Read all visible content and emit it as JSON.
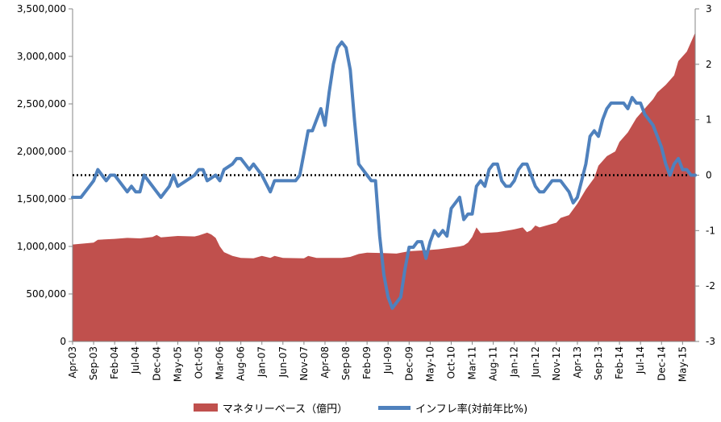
{
  "chart_data": {
    "type": "area",
    "title": "",
    "xlabel": "",
    "ylabel": "",
    "y_left": {
      "ylim": [
        0,
        3500000
      ],
      "ticks": [
        0,
        500000,
        1000000,
        1500000,
        2000000,
        2500000,
        3000000,
        3500000
      ],
      "tick_labels": [
        "0",
        "500,000",
        "1,000,000",
        "1,500,000",
        "2,000,000",
        "2,500,000",
        "3,000,000",
        "3,500,000"
      ]
    },
    "y_right": {
      "ylim": [
        -3,
        3
      ],
      "ticks": [
        -3,
        -2,
        -1,
        0,
        1,
        2,
        3
      ],
      "tick_labels": [
        "-3",
        "-2",
        "-1",
        "0",
        "1",
        "2",
        "3"
      ]
    },
    "x_range": [
      "Apr-03",
      "Aug-15"
    ],
    "x_tick_labels": [
      "Apr-03",
      "Sep-03",
      "Feb-04",
      "Jul-04",
      "Dec-04",
      "May-05",
      "Oct-05",
      "Mar-06",
      "Aug-06",
      "Jan-07",
      "Jun-07",
      "Nov-07",
      "Apr-08",
      "Sep-08",
      "Feb-09",
      "Jul-09",
      "Dec-09",
      "May-10",
      "Oct-10",
      "Mar-11",
      "Aug-11",
      "Jan-12",
      "Jun-12",
      "Nov-12",
      "Apr-13",
      "Sep-13",
      "Feb-14",
      "Jul-14",
      "Dec-14",
      "May-15"
    ],
    "grid": false,
    "legend_position": "bottom",
    "zero_reference_line": {
      "axis": "right",
      "value": 0,
      "style": "dotted"
    },
    "series": [
      {
        "name": "マネタリーベース（億円）",
        "type": "area",
        "axis": "left",
        "color": "#C0504D",
        "values": [
          [
            "Apr-03",
            1020000
          ],
          [
            "Sep-03",
            1040000
          ],
          [
            "Oct-03",
            1070000
          ],
          [
            "Feb-04",
            1080000
          ],
          [
            "May-04",
            1090000
          ],
          [
            "Aug-04",
            1085000
          ],
          [
            "Nov-04",
            1100000
          ],
          [
            "Dec-04",
            1120000
          ],
          [
            "Jan-05",
            1095000
          ],
          [
            "May-05",
            1110000
          ],
          [
            "Sep-05",
            1105000
          ],
          [
            "Oct-05",
            1115000
          ],
          [
            "Dec-05",
            1145000
          ],
          [
            "Jan-06",
            1125000
          ],
          [
            "Feb-06",
            1090000
          ],
          [
            "Mar-06",
            1000000
          ],
          [
            "Apr-06",
            940000
          ],
          [
            "Jun-06",
            900000
          ],
          [
            "Aug-06",
            880000
          ],
          [
            "Nov-06",
            875000
          ],
          [
            "Jan-07",
            900000
          ],
          [
            "Mar-07",
            880000
          ],
          [
            "Apr-07",
            900000
          ],
          [
            "Jun-07",
            880000
          ],
          [
            "Nov-07",
            875000
          ],
          [
            "Dec-07",
            900000
          ],
          [
            "Feb-08",
            880000
          ],
          [
            "Aug-08",
            880000
          ],
          [
            "Oct-08",
            890000
          ],
          [
            "Dec-08",
            920000
          ],
          [
            "Feb-09",
            935000
          ],
          [
            "Jun-09",
            930000
          ],
          [
            "Sep-09",
            925000
          ],
          [
            "Dec-09",
            950000
          ],
          [
            "Apr-10",
            960000
          ],
          [
            "Jul-10",
            970000
          ],
          [
            "Dec-10",
            1000000
          ],
          [
            "Jan-11",
            1010000
          ],
          [
            "Feb-11",
            1040000
          ],
          [
            "Mar-11",
            1100000
          ],
          [
            "Apr-11",
            1200000
          ],
          [
            "May-11",
            1140000
          ],
          [
            "Sep-11",
            1150000
          ],
          [
            "Jan-12",
            1180000
          ],
          [
            "Mar-12",
            1200000
          ],
          [
            "Apr-12",
            1150000
          ],
          [
            "May-12",
            1170000
          ],
          [
            "Jun-12",
            1220000
          ],
          [
            "Jul-12",
            1200000
          ],
          [
            "Nov-12",
            1250000
          ],
          [
            "Dec-12",
            1300000
          ],
          [
            "Feb-13",
            1330000
          ],
          [
            "Apr-13",
            1450000
          ],
          [
            "Jun-13",
            1600000
          ],
          [
            "Aug-13",
            1720000
          ],
          [
            "Sep-13",
            1850000
          ],
          [
            "Nov-13",
            1950000
          ],
          [
            "Jan-14",
            2000000
          ],
          [
            "Feb-14",
            2100000
          ],
          [
            "Apr-14",
            2200000
          ],
          [
            "Jun-14",
            2350000
          ],
          [
            "Aug-14",
            2450000
          ],
          [
            "Oct-14",
            2550000
          ],
          [
            "Nov-14",
            2620000
          ],
          [
            "Jan-15",
            2700000
          ],
          [
            "Mar-15",
            2800000
          ],
          [
            "Apr-15",
            2950000
          ],
          [
            "Jun-15",
            3050000
          ],
          [
            "Aug-15",
            3250000
          ]
        ]
      },
      {
        "name": "インフレ率(対前年比%)",
        "type": "line",
        "axis": "right",
        "color": "#4F81BD",
        "values": [
          [
            "Apr-03",
            -0.4
          ],
          [
            "Jun-03",
            -0.4
          ],
          [
            "Aug-03",
            -0.2
          ],
          [
            "Sep-03",
            -0.1
          ],
          [
            "Oct-03",
            0.1
          ],
          [
            "Nov-03",
            0.0
          ],
          [
            "Dec-03",
            -0.1
          ],
          [
            "Jan-04",
            0.0
          ],
          [
            "Feb-04",
            0.0
          ],
          [
            "Mar-04",
            -0.1
          ],
          [
            "Apr-04",
            -0.2
          ],
          [
            "May-04",
            -0.3
          ],
          [
            "Jun-04",
            -0.2
          ],
          [
            "Jul-04",
            -0.3
          ],
          [
            "Aug-04",
            -0.3
          ],
          [
            "Sep-04",
            0.0
          ],
          [
            "Dec-04",
            -0.3
          ],
          [
            "Jan-05",
            -0.4
          ],
          [
            "Mar-05",
            -0.2
          ],
          [
            "Apr-05",
            0.0
          ],
          [
            "May-05",
            -0.2
          ],
          [
            "Jul-05",
            -0.1
          ],
          [
            "Sep-05",
            0.0
          ],
          [
            "Oct-05",
            0.1
          ],
          [
            "Nov-05",
            0.1
          ],
          [
            "Dec-05",
            -0.1
          ],
          [
            "Feb-06",
            0.0
          ],
          [
            "Mar-06",
            -0.1
          ],
          [
            "Apr-06",
            0.1
          ],
          [
            "Jun-06",
            0.2
          ],
          [
            "Jul-06",
            0.3
          ],
          [
            "Aug-06",
            0.3
          ],
          [
            "Sep-06",
            0.2
          ],
          [
            "Oct-06",
            0.1
          ],
          [
            "Nov-06",
            0.2
          ],
          [
            "Jan-07",
            0.0
          ],
          [
            "Mar-07",
            -0.3
          ],
          [
            "Apr-07",
            -0.1
          ],
          [
            "Jun-07",
            -0.1
          ],
          [
            "Jul-07",
            -0.1
          ],
          [
            "Sep-07",
            -0.1
          ],
          [
            "Oct-07",
            0.0
          ],
          [
            "Nov-07",
            0.4
          ],
          [
            "Dec-07",
            0.8
          ],
          [
            "Jan-08",
            0.8
          ],
          [
            "Feb-08",
            1.0
          ],
          [
            "Mar-08",
            1.2
          ],
          [
            "Apr-08",
            0.9
          ],
          [
            "May-08",
            1.5
          ],
          [
            "Jun-08",
            2.0
          ],
          [
            "Jul-08",
            2.3
          ],
          [
            "Aug-08",
            2.4
          ],
          [
            "Sep-08",
            2.3
          ],
          [
            "Oct-08",
            1.9
          ],
          [
            "Nov-08",
            1.0
          ],
          [
            "Dec-08",
            0.2
          ],
          [
            "Feb-09",
            0.0
          ],
          [
            "Mar-09",
            -0.1
          ],
          [
            "Apr-09",
            -0.1
          ],
          [
            "May-09",
            -1.1
          ],
          [
            "Jun-09",
            -1.8
          ],
          [
            "Jul-09",
            -2.2
          ],
          [
            "Aug-09",
            -2.4
          ],
          [
            "Sep-09",
            -2.3
          ],
          [
            "Oct-09",
            -2.2
          ],
          [
            "Nov-09",
            -1.7
          ],
          [
            "Dec-09",
            -1.3
          ],
          [
            "Jan-10",
            -1.3
          ],
          [
            "Feb-10",
            -1.2
          ],
          [
            "Mar-10",
            -1.2
          ],
          [
            "Apr-10",
            -1.5
          ],
          [
            "May-10",
            -1.2
          ],
          [
            "Jun-10",
            -1.0
          ],
          [
            "Jul-10",
            -1.1
          ],
          [
            "Aug-10",
            -1.0
          ],
          [
            "Sep-10",
            -1.1
          ],
          [
            "Oct-10",
            -0.6
          ],
          [
            "Nov-10",
            -0.5
          ],
          [
            "Dec-10",
            -0.4
          ],
          [
            "Jan-11",
            -0.8
          ],
          [
            "Feb-11",
            -0.7
          ],
          [
            "Mar-11",
            -0.7
          ],
          [
            "Apr-11",
            -0.2
          ],
          [
            "May-11",
            -0.1
          ],
          [
            "Jun-11",
            -0.2
          ],
          [
            "Jul-11",
            0.1
          ],
          [
            "Aug-11",
            0.2
          ],
          [
            "Sep-11",
            0.2
          ],
          [
            "Oct-11",
            -0.1
          ],
          [
            "Nov-11",
            -0.2
          ],
          [
            "Dec-11",
            -0.2
          ],
          [
            "Jan-12",
            -0.1
          ],
          [
            "Feb-12",
            0.1
          ],
          [
            "Mar-12",
            0.2
          ],
          [
            "Apr-12",
            0.2
          ],
          [
            "May-12",
            0.0
          ],
          [
            "Jun-12",
            -0.2
          ],
          [
            "Jul-12",
            -0.3
          ],
          [
            "Aug-12",
            -0.3
          ],
          [
            "Sep-12",
            -0.2
          ],
          [
            "Oct-12",
            -0.1
          ],
          [
            "Nov-12",
            -0.1
          ],
          [
            "Dec-12",
            -0.1
          ],
          [
            "Jan-13",
            -0.2
          ],
          [
            "Feb-13",
            -0.3
          ],
          [
            "Mar-13",
            -0.5
          ],
          [
            "Apr-13",
            -0.4
          ],
          [
            "May-13",
            -0.1
          ],
          [
            "Jun-13",
            0.2
          ],
          [
            "Jul-13",
            0.7
          ],
          [
            "Aug-13",
            0.8
          ],
          [
            "Sep-13",
            0.7
          ],
          [
            "Oct-13",
            1.0
          ],
          [
            "Nov-13",
            1.2
          ],
          [
            "Dec-13",
            1.3
          ],
          [
            "Jan-14",
            1.3
          ],
          [
            "Feb-14",
            1.3
          ],
          [
            "Mar-14",
            1.3
          ],
          [
            "Apr-14",
            1.2
          ],
          [
            "May-14",
            1.4
          ],
          [
            "Jun-14",
            1.3
          ],
          [
            "Jul-14",
            1.3
          ],
          [
            "Aug-14",
            1.1
          ],
          [
            "Sep-14",
            1.0
          ],
          [
            "Oct-14",
            0.9
          ],
          [
            "Nov-14",
            0.7
          ],
          [
            "Dec-14",
            0.5
          ],
          [
            "Jan-15",
            0.2
          ],
          [
            "Feb-15",
            0.0
          ],
          [
            "Mar-15",
            0.2
          ],
          [
            "Apr-15",
            0.3
          ],
          [
            "May-15",
            0.1
          ],
          [
            "Jun-15",
            0.1
          ],
          [
            "Jul-15",
            0.0
          ],
          [
            "Aug-15",
            0.0
          ]
        ]
      }
    ]
  }
}
